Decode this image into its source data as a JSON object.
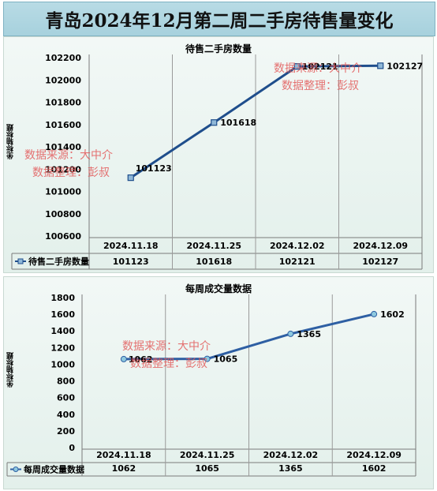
{
  "page_title": "青岛2024年12月第二周二手房待售量变化",
  "watermark": {
    "source": "数据来源：大中介",
    "editor": "数据整理：彭叔"
  },
  "colors": {
    "banner": "#b1d7e1",
    "line1": "#1f4e8c",
    "line2": "#2e5fa3",
    "marker2": "#8ec9df",
    "watermark": "#e35a5a"
  },
  "chart_data": [
    {
      "type": "line",
      "title": "待售二手房数量",
      "ylabel": "坐标轴标题",
      "categories": [
        "2024.11.18",
        "2024.11.25",
        "2024.12.02",
        "2024.12.09"
      ],
      "series": [
        {
          "name": "待售二手房数量",
          "values": [
            101123,
            101618,
            102121,
            102127
          ]
        }
      ],
      "ylim": [
        100600,
        102200
      ],
      "yticks": [
        100600,
        100800,
        101000,
        101200,
        101400,
        101600,
        101800,
        102000,
        102200
      ],
      "data_labels": true,
      "marker": "square",
      "grid": false,
      "legend": "data-table"
    },
    {
      "type": "line",
      "title": "每周成交量数据",
      "ylabel": "坐标轴标题",
      "categories": [
        "2024.11.18",
        "2024.11.25",
        "2024.12.02",
        "2024.12.09"
      ],
      "series": [
        {
          "name": "每周成交量数据",
          "values": [
            1062,
            1065,
            1365,
            1602
          ]
        }
      ],
      "ylim": [
        0,
        1800
      ],
      "yticks": [
        0,
        200,
        400,
        600,
        800,
        1000,
        1200,
        1400,
        1600,
        1800
      ],
      "data_labels": true,
      "marker": "circle",
      "grid": false,
      "legend": "data-table"
    }
  ]
}
